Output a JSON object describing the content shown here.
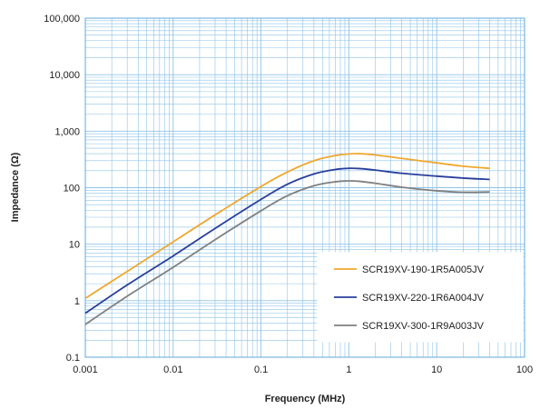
{
  "chart_data": {
    "type": "line",
    "title": "",
    "xlabel": "Frequency (MHz)",
    "ylabel": "Impedance (Ω)",
    "x_scale": "log",
    "y_scale": "log",
    "xlim": [
      0.001,
      100
    ],
    "ylim": [
      0.1,
      100000
    ],
    "grid": true,
    "legend_position": "bottom-right",
    "x_tick_labels": [
      "0.001",
      "0.01",
      "0.1",
      "1",
      "10",
      "100"
    ],
    "y_tick_labels": [
      "100,000",
      "10,000",
      "1,000",
      "100",
      "10",
      "1",
      "0.1"
    ],
    "colors": {
      "grid": "#8fc3e8",
      "frame": "#5fa8dc"
    },
    "series": [
      {
        "name": "SCR19XV-190-1R5A005JV",
        "color": "#f0a830",
        "x": [
          0.001,
          0.003,
          0.01,
          0.03,
          0.1,
          0.2,
          0.4,
          0.7,
          1.0,
          1.3,
          2.0,
          4.0,
          10,
          20,
          40
        ],
        "y": [
          1.1,
          3.3,
          11,
          33,
          105,
          190,
          300,
          370,
          395,
          400,
          380,
          330,
          275,
          240,
          220
        ]
      },
      {
        "name": "SCR19XV-220-1R6A004JV",
        "color": "#2a3f9c",
        "x": [
          0.001,
          0.003,
          0.01,
          0.03,
          0.1,
          0.2,
          0.4,
          0.7,
          1.0,
          1.3,
          2.0,
          4.0,
          10,
          20,
          40
        ],
        "y": [
          0.6,
          1.9,
          6.2,
          19,
          62,
          115,
          175,
          210,
          220,
          218,
          205,
          180,
          160,
          148,
          140
        ]
      },
      {
        "name": "SCR19XV-300-1R9A003JV",
        "color": "#808080",
        "x": [
          0.001,
          0.003,
          0.01,
          0.03,
          0.1,
          0.2,
          0.4,
          0.7,
          1.0,
          1.3,
          2.0,
          4.0,
          10,
          20,
          40
        ],
        "y": [
          0.38,
          1.2,
          3.9,
          12,
          39,
          72,
          108,
          127,
          132,
          130,
          120,
          102,
          88,
          83,
          84
        ]
      }
    ]
  }
}
